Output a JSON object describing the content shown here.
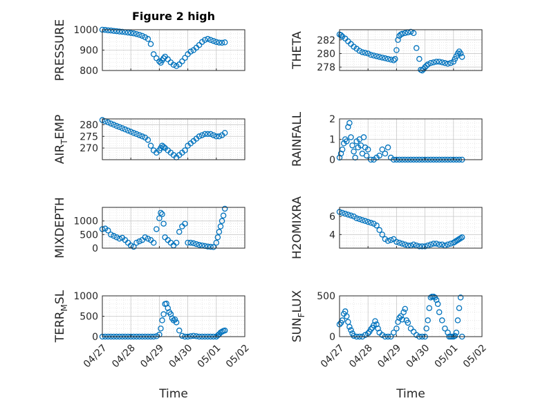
{
  "chart_data": {
    "title": "Figure 2 high",
    "marker_color": "#0072bd",
    "grid": true,
    "minor_grid": true,
    "panels": [
      {
        "type": "scatter",
        "ylabel": "PRESSURE",
        "ylabel_parts": [
          "PRESSURE"
        ],
        "ylim": [
          800,
          1000
        ],
        "yticks": [
          800,
          900,
          1000
        ],
        "xticklabels_visible": false,
        "x": [
          0.0,
          0.1,
          0.2,
          0.3,
          0.4,
          0.5,
          0.6,
          0.7,
          0.8,
          0.9,
          1.0,
          1.1,
          1.2,
          1.3,
          1.4,
          1.5,
          1.6,
          1.7,
          1.8,
          1.9,
          2.0,
          2.05,
          2.1,
          2.15,
          2.2,
          2.3,
          2.4,
          2.5,
          2.6,
          2.7,
          2.8,
          2.9,
          3.0,
          3.1,
          3.2,
          3.3,
          3.4,
          3.5,
          3.6,
          3.7,
          3.8,
          3.9,
          4.0,
          4.1,
          4.2,
          4.3
        ],
        "y": [
          1000,
          999,
          997,
          996,
          994,
          993,
          991,
          990,
          988,
          986,
          984,
          982,
          979,
          975,
          970,
          963,
          955,
          930,
          880,
          860,
          845,
          838,
          850,
          860,
          868,
          855,
          840,
          828,
          822,
          830,
          845,
          862,
          880,
          893,
          900,
          912,
          925,
          940,
          950,
          955,
          950,
          945,
          940,
          937,
          936,
          938
        ],
        "x_axis": "days",
        "xlim": [
          "04/27",
          "05/02"
        ]
      },
      {
        "type": "scatter",
        "ylabel": "THETA",
        "ylabel_parts": [
          "THETA"
        ],
        "ylim": [
          277.5,
          283.5
        ],
        "yticks": [
          278,
          280,
          282
        ],
        "xticklabels_visible": false,
        "x": [
          0.0,
          0.05,
          0.1,
          0.2,
          0.3,
          0.4,
          0.5,
          0.6,
          0.7,
          0.8,
          0.9,
          1.0,
          1.1,
          1.2,
          1.3,
          1.4,
          1.5,
          1.6,
          1.7,
          1.8,
          1.9,
          1.95,
          2.0,
          2.05,
          2.1,
          2.15,
          2.2,
          2.3,
          2.4,
          2.5,
          2.6,
          2.7,
          2.8,
          2.85,
          2.9,
          2.95,
          3.0,
          3.05,
          3.1,
          3.2,
          3.3,
          3.4,
          3.5,
          3.6,
          3.7,
          3.8,
          3.9,
          4.0,
          4.05,
          4.1,
          4.15,
          4.2,
          4.25,
          4.3
        ],
        "y": [
          282.8,
          282.7,
          282.5,
          282.2,
          281.8,
          281.4,
          281.0,
          280.7,
          280.4,
          280.2,
          280.1,
          280.0,
          279.8,
          279.7,
          279.6,
          279.5,
          279.4,
          279.3,
          279.2,
          279.1,
          279.0,
          279.2,
          280.5,
          282.0,
          282.6,
          282.8,
          282.9,
          283.0,
          283.1,
          283.2,
          283.0,
          280.8,
          279.2,
          277.6,
          277.5,
          277.7,
          278.0,
          278.2,
          278.4,
          278.6,
          278.7,
          278.8,
          278.8,
          278.7,
          278.6,
          278.5,
          278.6,
          278.8,
          279.2,
          279.6,
          280.0,
          280.3,
          280.0,
          279.5
        ],
        "x_axis": "days",
        "xlim": [
          "04/27",
          "05/02"
        ]
      },
      {
        "type": "scatter",
        "ylabel": "AIR_TEMP",
        "ylabel_parts": [
          "AIR",
          "T",
          "EMP"
        ],
        "ylim": [
          265,
          282.5
        ],
        "yticks": [
          270,
          275,
          280
        ],
        "xticklabels_visible": false,
        "x": [
          0.0,
          0.1,
          0.2,
          0.3,
          0.4,
          0.5,
          0.6,
          0.7,
          0.8,
          0.9,
          1.0,
          1.1,
          1.2,
          1.3,
          1.4,
          1.5,
          1.6,
          1.7,
          1.8,
          1.9,
          2.0,
          2.05,
          2.1,
          2.15,
          2.2,
          2.3,
          2.4,
          2.5,
          2.6,
          2.7,
          2.8,
          2.9,
          3.0,
          3.1,
          3.2,
          3.3,
          3.4,
          3.5,
          3.6,
          3.7,
          3.8,
          3.9,
          4.0,
          4.1,
          4.2,
          4.3
        ],
        "y": [
          282,
          281.5,
          281,
          280.5,
          280,
          279.5,
          279,
          278.5,
          278,
          277.5,
          277,
          276.5,
          276,
          275.5,
          275,
          274.5,
          273.5,
          271,
          269,
          268,
          269,
          270,
          271,
          270.5,
          270,
          269,
          268,
          267,
          266,
          267,
          268,
          269,
          271,
          272,
          273,
          274,
          275,
          275.5,
          276,
          276,
          276,
          275.5,
          275,
          275,
          275.5,
          276.5
        ],
        "x_axis": "days",
        "xlim": [
          "04/27",
          "05/02"
        ]
      },
      {
        "type": "scatter",
        "ylabel": "RAINFALL",
        "ylabel_parts": [
          "RAINFALL"
        ],
        "ylim": [
          0,
          2
        ],
        "yticks": [
          0,
          1,
          2
        ],
        "xticklabels_visible": false,
        "x": [
          0.0,
          0.05,
          0.1,
          0.15,
          0.2,
          0.25,
          0.3,
          0.35,
          0.4,
          0.45,
          0.5,
          0.55,
          0.6,
          0.65,
          0.7,
          0.75,
          0.8,
          0.85,
          0.9,
          0.95,
          1.0,
          1.1,
          1.2,
          1.3,
          1.4,
          1.5,
          1.6,
          1.7,
          1.8,
          1.9,
          2.0,
          2.1,
          2.2,
          2.3,
          2.4,
          2.5,
          2.6,
          2.7,
          2.8,
          2.9,
          3.0,
          3.1,
          3.2,
          3.3,
          3.4,
          3.5,
          3.6,
          3.7,
          3.8,
          3.9,
          4.0,
          4.1,
          4.2,
          4.3
        ],
        "y": [
          0.1,
          0.3,
          0.5,
          0.8,
          1.0,
          0.9,
          1.6,
          1.8,
          1.1,
          0.7,
          0.4,
          0.1,
          0.9,
          0.6,
          1.0,
          0.7,
          0.3,
          1.1,
          0.6,
          0.2,
          0.5,
          0,
          0,
          0.1,
          0.2,
          0.5,
          0.3,
          0.6,
          0.1,
          0,
          0,
          0,
          0,
          0,
          0,
          0,
          0,
          0,
          0,
          0,
          0,
          0,
          0,
          0,
          0,
          0,
          0,
          0,
          0,
          0,
          0,
          0,
          0,
          0
        ],
        "x_axis": "days",
        "xlim": [
          "04/27",
          "05/02"
        ]
      },
      {
        "type": "scatter",
        "ylabel": "MIXDEPTH",
        "ylabel_parts": [
          "MIXDEPTH"
        ],
        "ylim": [
          0,
          1500
        ],
        "yticks": [
          0,
          500,
          1000
        ],
        "xticklabels_visible": false,
        "x": [
          0.0,
          0.1,
          0.2,
          0.3,
          0.4,
          0.5,
          0.6,
          0.7,
          0.8,
          0.9,
          1.0,
          1.1,
          1.2,
          1.3,
          1.4,
          1.5,
          1.6,
          1.7,
          1.8,
          1.9,
          2.0,
          2.05,
          2.1,
          2.15,
          2.2,
          2.3,
          2.4,
          2.5,
          2.6,
          2.7,
          2.8,
          2.9,
          3.0,
          3.1,
          3.2,
          3.3,
          3.4,
          3.5,
          3.6,
          3.7,
          3.8,
          3.9,
          4.0,
          4.05,
          4.1,
          4.15,
          4.2,
          4.25,
          4.3
        ],
        "y": [
          700,
          720,
          650,
          500,
          450,
          400,
          350,
          380,
          300,
          200,
          100,
          50,
          200,
          250,
          300,
          400,
          350,
          300,
          200,
          700,
          1100,
          1300,
          1250,
          900,
          400,
          300,
          200,
          100,
          200,
          600,
          800,
          900,
          200,
          200,
          180,
          150,
          120,
          100,
          80,
          60,
          50,
          40,
          200,
          400,
          600,
          800,
          1000,
          1200,
          1450
        ],
        "x_axis": "days",
        "xlim": [
          "04/27",
          "05/02"
        ]
      },
      {
        "type": "scatter",
        "ylabel": "H2OMIXRA",
        "ylabel_parts": [
          "H2OMIXRA"
        ],
        "ylim": [
          2.5,
          7
        ],
        "yticks": [
          4,
          6
        ],
        "xticklabels_visible": false,
        "x": [
          0.0,
          0.1,
          0.2,
          0.3,
          0.4,
          0.5,
          0.6,
          0.7,
          0.8,
          0.9,
          1.0,
          1.1,
          1.2,
          1.3,
          1.4,
          1.5,
          1.6,
          1.7,
          1.8,
          1.9,
          2.0,
          2.1,
          2.2,
          2.3,
          2.4,
          2.5,
          2.6,
          2.7,
          2.8,
          2.9,
          3.0,
          3.1,
          3.2,
          3.3,
          3.4,
          3.5,
          3.6,
          3.7,
          3.8,
          3.9,
          4.0,
          4.05,
          4.1,
          4.15,
          4.2,
          4.25,
          4.3
        ],
        "y": [
          6.5,
          6.4,
          6.3,
          6.2,
          6.1,
          6.0,
          5.8,
          5.7,
          5.6,
          5.5,
          5.4,
          5.3,
          5.2,
          5.0,
          4.5,
          4.0,
          3.5,
          3.3,
          3.4,
          3.5,
          3.2,
          3.1,
          3.0,
          2.9,
          2.8,
          2.8,
          2.9,
          2.8,
          2.7,
          2.7,
          2.7,
          2.8,
          2.9,
          3.0,
          3.0,
          2.9,
          2.9,
          2.8,
          2.9,
          3.0,
          3.1,
          3.2,
          3.3,
          3.4,
          3.5,
          3.6,
          3.7
        ],
        "x_axis": "days",
        "xlim": [
          "04/27",
          "05/02"
        ]
      },
      {
        "type": "scatter",
        "ylabel": "TERR_MSL",
        "ylabel_parts": [
          "TERR",
          "M",
          "SL"
        ],
        "ylim": [
          0,
          1000
        ],
        "yticks": [
          0,
          500,
          1000
        ],
        "xticklabels_visible": true,
        "x": [
          0.0,
          0.1,
          0.2,
          0.3,
          0.4,
          0.5,
          0.6,
          0.7,
          0.8,
          0.9,
          1.0,
          1.1,
          1.2,
          1.3,
          1.4,
          1.5,
          1.6,
          1.7,
          1.8,
          1.9,
          2.0,
          2.05,
          2.1,
          2.15,
          2.2,
          2.25,
          2.3,
          2.35,
          2.4,
          2.45,
          2.5,
          2.55,
          2.6,
          2.7,
          2.8,
          2.9,
          3.0,
          3.1,
          3.2,
          3.3,
          3.4,
          3.5,
          3.6,
          3.7,
          3.8,
          3.9,
          4.0,
          4.05,
          4.1,
          4.15,
          4.2,
          4.25,
          4.3
        ],
        "y": [
          0,
          0,
          0,
          0,
          0,
          0,
          0,
          0,
          0,
          0,
          0,
          0,
          0,
          0,
          0,
          0,
          0,
          0,
          0,
          10,
          50,
          200,
          400,
          550,
          800,
          810,
          700,
          600,
          550,
          450,
          400,
          420,
          350,
          150,
          20,
          0,
          0,
          10,
          20,
          10,
          0,
          0,
          0,
          0,
          0,
          0,
          0,
          30,
          60,
          100,
          120,
          140,
          150
        ],
        "x_axis": "days",
        "xlim": [
          "04/27",
          "05/02"
        ]
      },
      {
        "type": "scatter",
        "ylabel": "SUN_FLUX",
        "ylabel_parts": [
          "SUN",
          "F",
          "LUX"
        ],
        "ylim": [
          0,
          500
        ],
        "yticks": [
          0,
          500
        ],
        "xticklabels_visible": true,
        "x": [
          0.0,
          0.05,
          0.1,
          0.15,
          0.2,
          0.25,
          0.3,
          0.35,
          0.4,
          0.45,
          0.5,
          0.6,
          0.7,
          0.8,
          0.9,
          1.0,
          1.05,
          1.1,
          1.15,
          1.2,
          1.25,
          1.3,
          1.35,
          1.4,
          1.5,
          1.6,
          1.7,
          1.8,
          1.9,
          2.0,
          2.05,
          2.1,
          2.15,
          2.2,
          2.25,
          2.3,
          2.35,
          2.4,
          2.5,
          2.6,
          2.7,
          2.8,
          2.9,
          3.0,
          3.05,
          3.1,
          3.15,
          3.2,
          3.25,
          3.3,
          3.35,
          3.4,
          3.45,
          3.5,
          3.6,
          3.7,
          3.8,
          3.85,
          3.9,
          3.95,
          4.0,
          4.05,
          4.1,
          4.15,
          4.2,
          4.25,
          4.3
        ],
        "y": [
          150,
          170,
          200,
          280,
          310,
          250,
          180,
          120,
          80,
          40,
          10,
          0,
          0,
          0,
          20,
          40,
          60,
          90,
          110,
          140,
          190,
          150,
          100,
          50,
          20,
          0,
          0,
          0,
          50,
          100,
          180,
          230,
          250,
          210,
          300,
          340,
          200,
          170,
          100,
          60,
          20,
          0,
          0,
          0,
          100,
          200,
          350,
          480,
          490,
          490,
          480,
          450,
          400,
          300,
          200,
          100,
          50,
          0,
          0,
          0,
          0,
          10,
          50,
          200,
          350,
          480,
          0
        ],
        "x_axis": "days",
        "xlim": [
          "04/27",
          "05/02"
        ]
      }
    ],
    "x_tick_labels": [
      "04/27",
      "04/28",
      "04/29",
      "04/30",
      "05/01",
      "05/02"
    ],
    "xlabel": "Time"
  }
}
